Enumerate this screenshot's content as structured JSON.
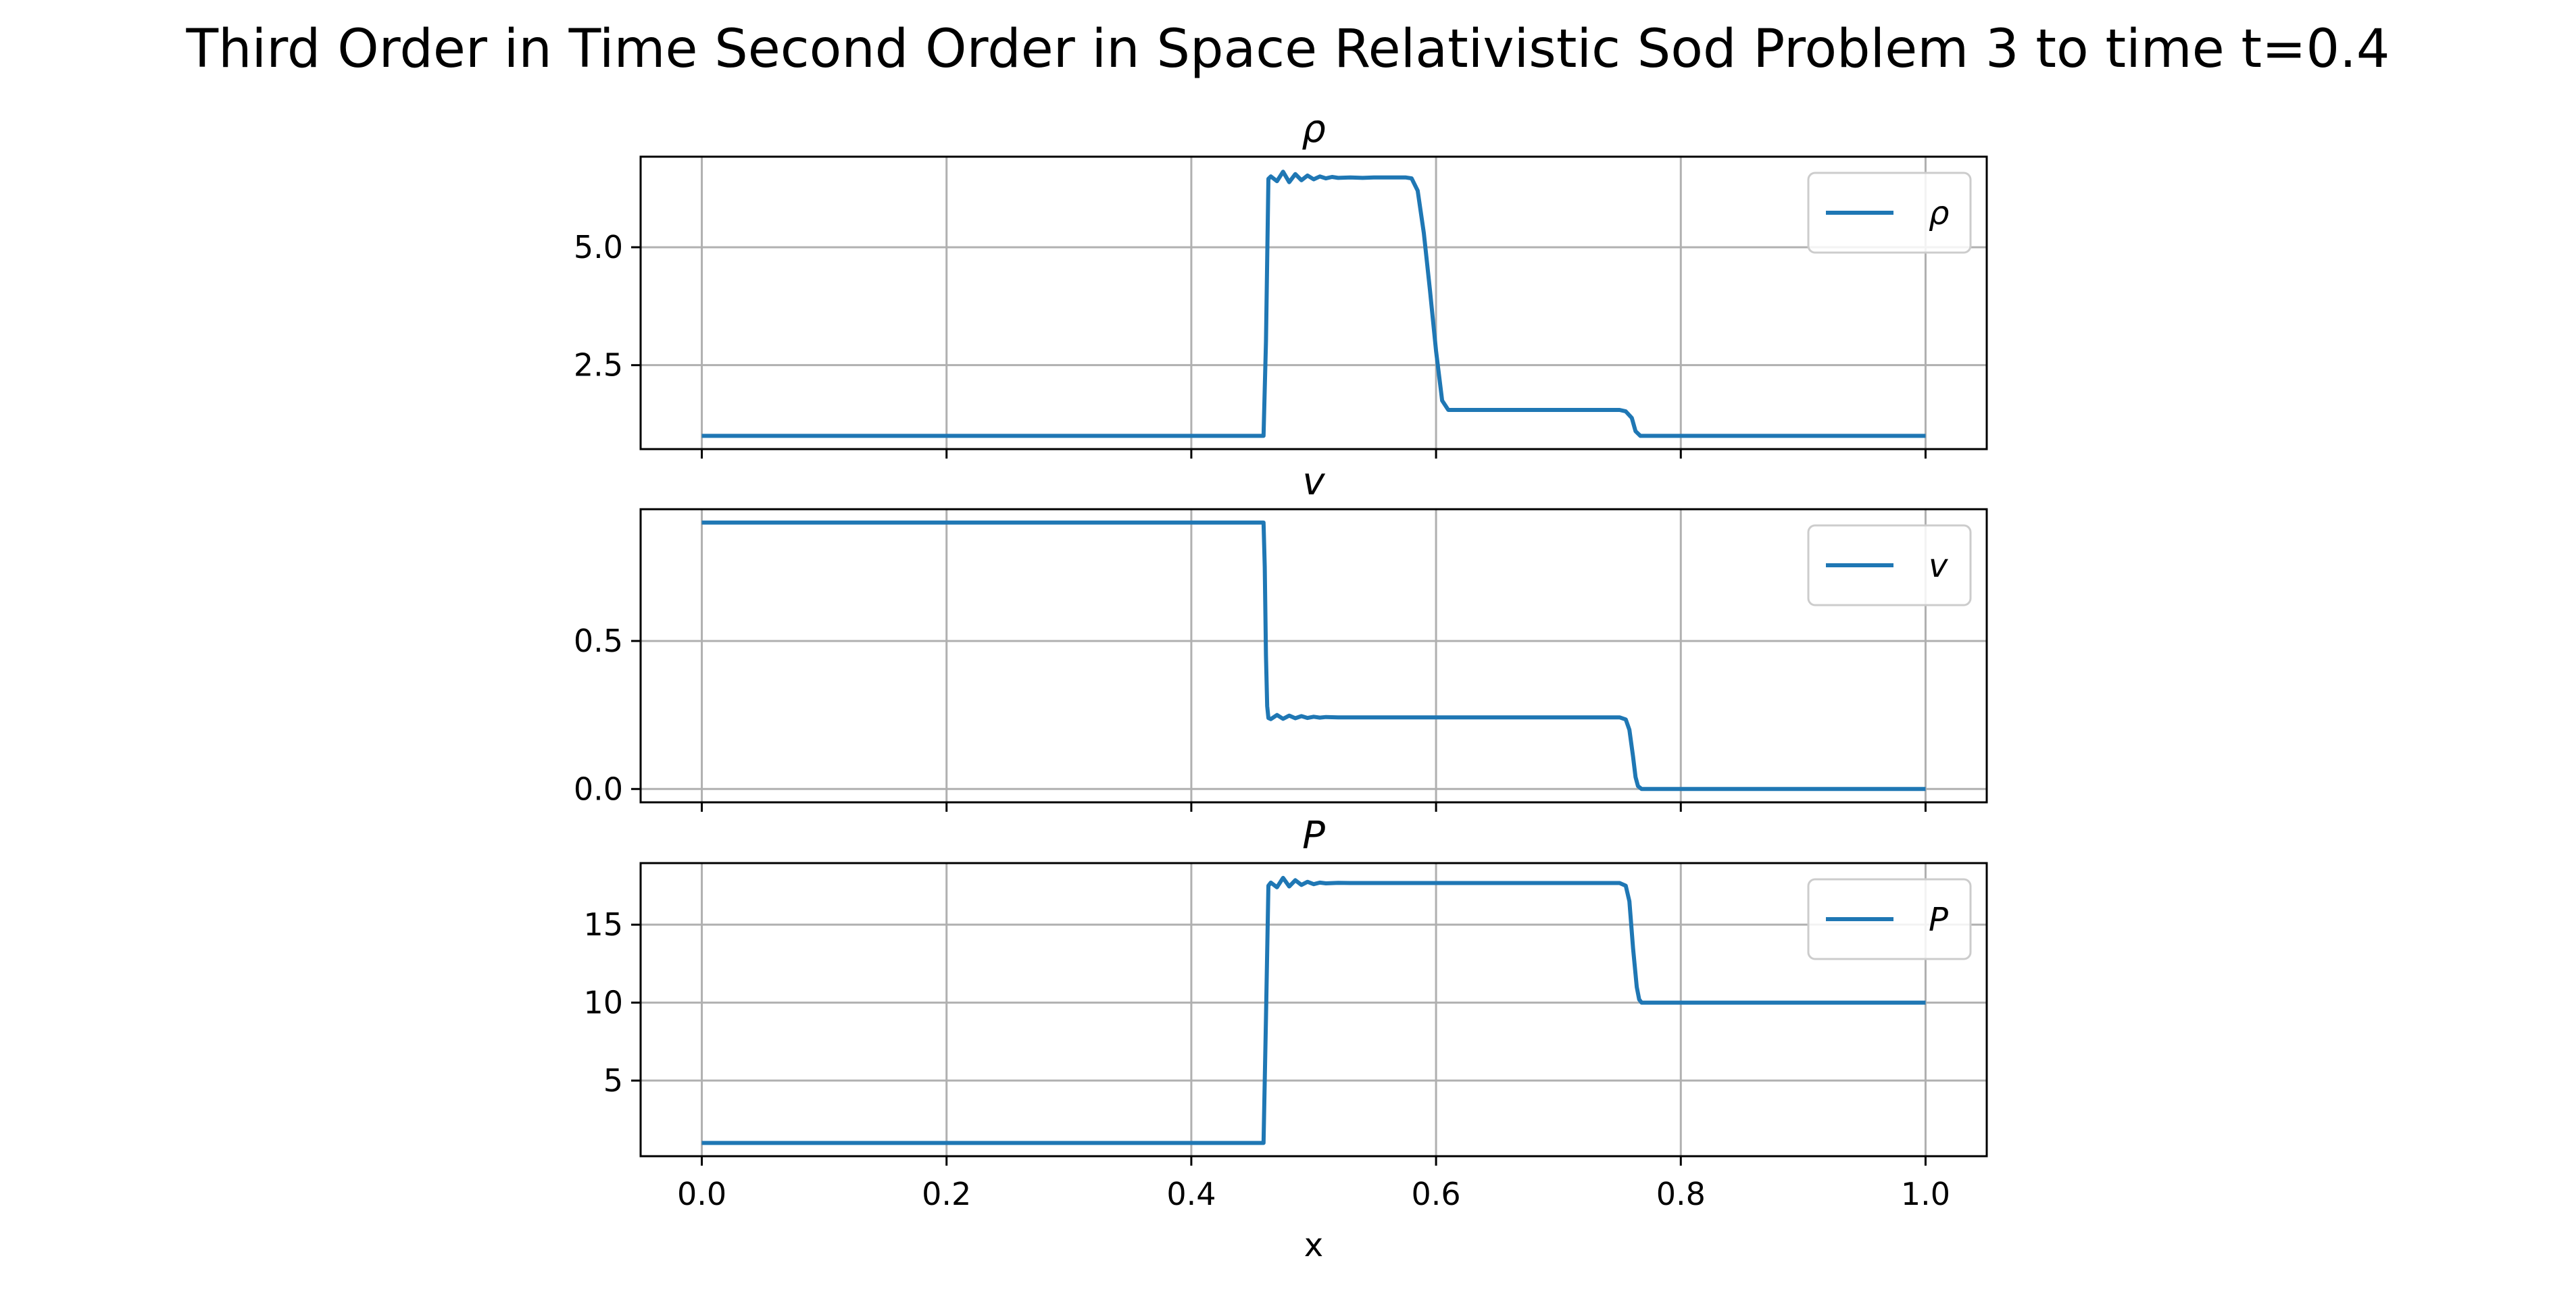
{
  "figure_title": "Third Order in Time Second Order in Space Relativistic Sod Problem 3 to time t=0.4",
  "line_color": "#1f77b4",
  "grid_color": "#b0b0b0",
  "chart_data": [
    {
      "type": "line",
      "title": "ρ",
      "legend": "ρ",
      "legend_position": "upper right",
      "grid": true,
      "xlabel": "",
      "ylabel": "",
      "xlim": [
        -0.05,
        1.05
      ],
      "ylim": [
        0.72,
        6.92
      ],
      "xticks": [
        0.0,
        0.2,
        0.4,
        0.6,
        0.8,
        1.0
      ],
      "xtick_labels": [
        "",
        "",
        "",
        "",
        "",
        ""
      ],
      "yticks": [
        2.5,
        5.0
      ],
      "ytick_labels": [
        "2.5",
        "5.0"
      ],
      "series": [
        {
          "name": "ρ",
          "x": [
            0.0,
            0.459,
            0.461,
            0.463,
            0.465,
            0.47,
            0.475,
            0.48,
            0.485,
            0.49,
            0.495,
            0.5,
            0.505,
            0.51,
            0.515,
            0.52,
            0.53,
            0.54,
            0.55,
            0.56,
            0.57,
            0.575,
            0.58,
            0.585,
            0.59,
            0.595,
            0.6,
            0.605,
            0.61,
            0.62,
            0.65,
            0.7,
            0.75,
            0.755,
            0.76,
            0.763,
            0.767,
            0.8,
            0.9,
            1.0
          ],
          "y": [
            1.0,
            1.0,
            3.0,
            6.45,
            6.5,
            6.4,
            6.6,
            6.38,
            6.55,
            6.42,
            6.52,
            6.44,
            6.5,
            6.46,
            6.49,
            6.47,
            6.48,
            6.47,
            6.48,
            6.48,
            6.48,
            6.48,
            6.46,
            6.2,
            5.3,
            4.1,
            2.8,
            1.75,
            1.55,
            1.55,
            1.55,
            1.55,
            1.55,
            1.52,
            1.38,
            1.1,
            1.0,
            1.0,
            1.0,
            1.0
          ]
        }
      ]
    },
    {
      "type": "line",
      "title": "v",
      "legend": "v",
      "legend_position": "upper right",
      "grid": true,
      "xlabel": "",
      "ylabel": "",
      "xlim": [
        -0.05,
        1.05
      ],
      "ylim": [
        -0.045,
        0.945
      ],
      "xticks": [
        0.0,
        0.2,
        0.4,
        0.6,
        0.8,
        1.0
      ],
      "xtick_labels": [
        "",
        "",
        "",
        "",
        "",
        ""
      ],
      "yticks": [
        0.0,
        0.5
      ],
      "ytick_labels": [
        "0.0",
        "0.5"
      ],
      "series": [
        {
          "name": "v",
          "x": [
            0.0,
            0.459,
            0.46,
            0.461,
            0.462,
            0.463,
            0.465,
            0.47,
            0.475,
            0.48,
            0.485,
            0.49,
            0.495,
            0.5,
            0.505,
            0.51,
            0.52,
            0.53,
            0.55,
            0.6,
            0.7,
            0.75,
            0.755,
            0.758,
            0.761,
            0.763,
            0.765,
            0.768,
            0.8,
            0.9,
            1.0
          ],
          "y": [
            0.9,
            0.9,
            0.75,
            0.45,
            0.28,
            0.24,
            0.236,
            0.25,
            0.237,
            0.248,
            0.239,
            0.246,
            0.24,
            0.244,
            0.241,
            0.243,
            0.242,
            0.242,
            0.242,
            0.242,
            0.242,
            0.242,
            0.235,
            0.2,
            0.11,
            0.04,
            0.01,
            0.0,
            0.0,
            0.0,
            0.0
          ]
        }
      ]
    },
    {
      "type": "line",
      "title": "P",
      "legend": "P",
      "legend_position": "upper right",
      "grid": true,
      "xlabel": "x",
      "ylabel": "",
      "xlim": [
        -0.05,
        1.05
      ],
      "ylim": [
        0.15,
        18.95
      ],
      "xticks": [
        0.0,
        0.2,
        0.4,
        0.6,
        0.8,
        1.0
      ],
      "xtick_labels": [
        "0.0",
        "0.2",
        "0.4",
        "0.6",
        "0.8",
        "1.0"
      ],
      "yticks": [
        5,
        10,
        15
      ],
      "ytick_labels": [
        "5",
        "10",
        "15"
      ],
      "series": [
        {
          "name": "P",
          "x": [
            0.0,
            0.459,
            0.461,
            0.463,
            0.465,
            0.47,
            0.475,
            0.48,
            0.485,
            0.49,
            0.495,
            0.5,
            0.505,
            0.51,
            0.52,
            0.53,
            0.55,
            0.6,
            0.7,
            0.75,
            0.755,
            0.758,
            0.761,
            0.764,
            0.766,
            0.768,
            0.8,
            0.9,
            1.0
          ],
          "y": [
            1.0,
            1.0,
            9.0,
            17.5,
            17.7,
            17.4,
            18.0,
            17.45,
            17.85,
            17.55,
            17.75,
            17.6,
            17.7,
            17.65,
            17.68,
            17.67,
            17.67,
            17.67,
            17.67,
            17.67,
            17.5,
            16.5,
            13.5,
            11.0,
            10.2,
            10.0,
            10.0,
            10.0,
            10.0
          ]
        }
      ]
    }
  ]
}
